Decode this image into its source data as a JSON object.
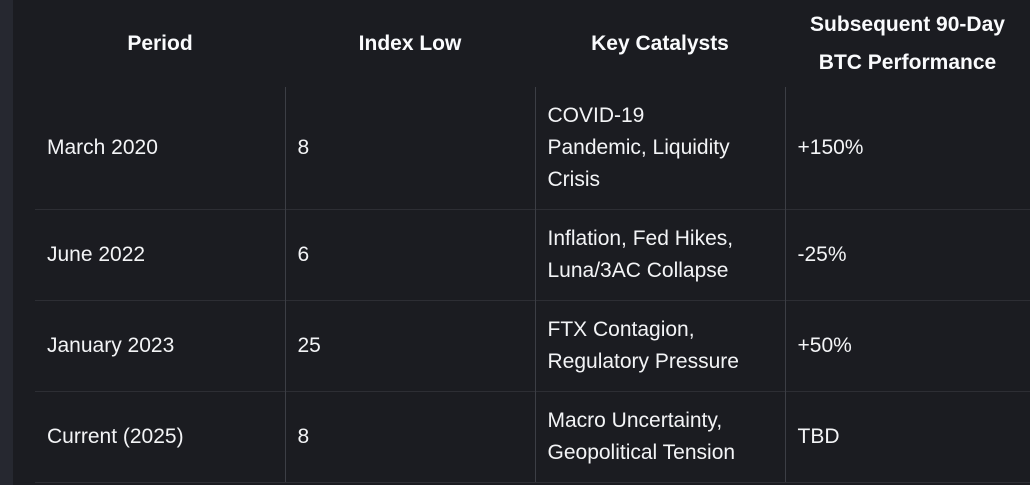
{
  "colors": {
    "background": "#1b1c21",
    "left_gutter": "#262830",
    "text": "#f3f4f6",
    "header_text": "#fafbfd",
    "row_divider": "#2d2e34",
    "column_divider": "#3c3e45"
  },
  "table": {
    "headers": {
      "period": "Period",
      "index_low": "Index Low",
      "catalysts": "Key Catalysts",
      "performance": "Subsequent 90-Day\nBTC Performance"
    },
    "rows": [
      {
        "period": "March 2020",
        "index_low": "8",
        "catalysts": "COVID-19\nPandemic, Liquidity\nCrisis",
        "performance": "+150%"
      },
      {
        "period": "June 2022",
        "index_low": "6",
        "catalysts": "Inflation, Fed Hikes,\nLuna/3AC Collapse",
        "performance": "-25%"
      },
      {
        "period": "January 2023",
        "index_low": "25",
        "catalysts": "FTX Contagion,\nRegulatory Pressure",
        "performance": "+50%"
      },
      {
        "period": "Current (2025)",
        "index_low": "8",
        "catalysts": "Macro Uncertainty,\nGeopolitical Tension",
        "performance": "TBD"
      }
    ]
  },
  "chart_data": {
    "type": "table",
    "columns": [
      "Period",
      "Index Low",
      "Key Catalysts",
      "Subsequent 90-Day BTC Performance"
    ],
    "rows": [
      [
        "March 2020",
        "8",
        "COVID-19 Pandemic, Liquidity Crisis",
        "+150%"
      ],
      [
        "June 2022",
        "6",
        "Inflation, Fed Hikes, Luna/3AC Collapse",
        "-25%"
      ],
      [
        "January 2023",
        "25",
        "FTX Contagion, Regulatory Pressure",
        "+50%"
      ],
      [
        "Current (2025)",
        "8",
        "Macro Uncertainty, Geopolitical Tension",
        "TBD"
      ]
    ]
  }
}
